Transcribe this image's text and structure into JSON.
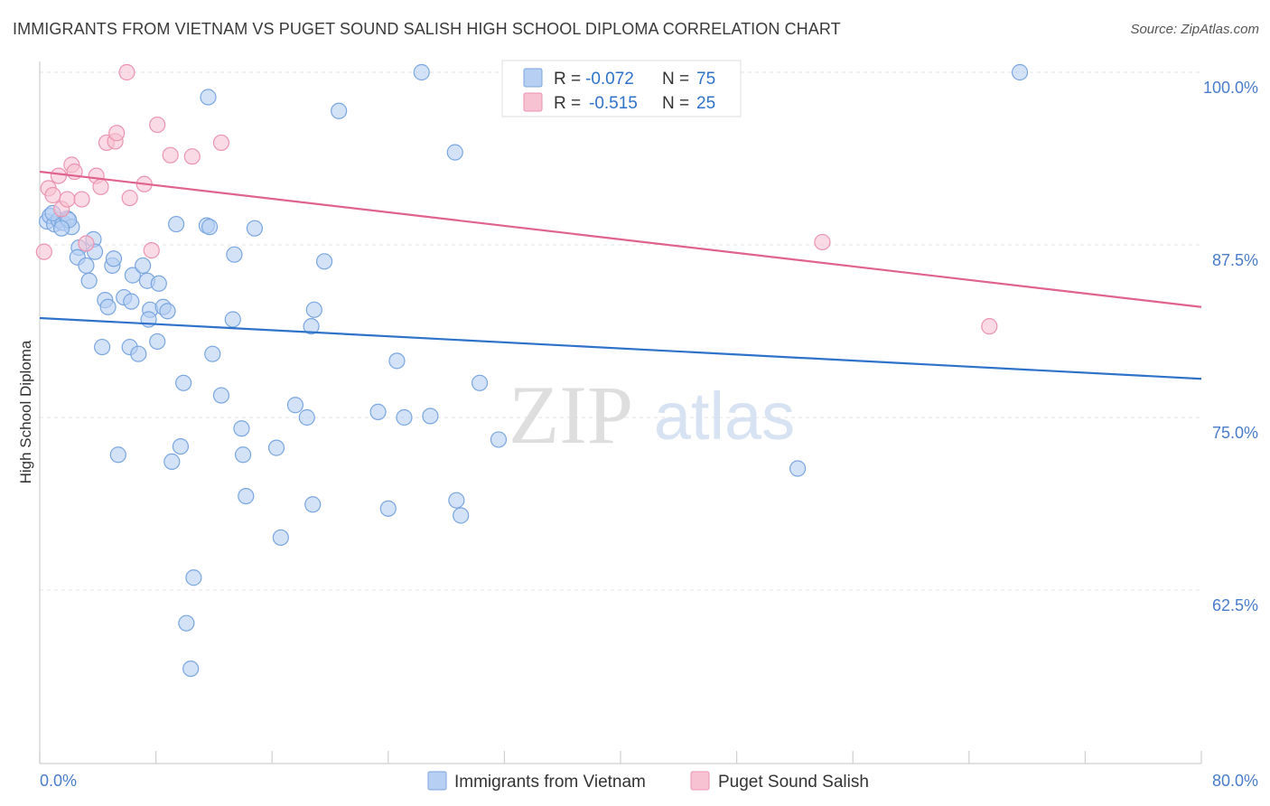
{
  "title": "IMMIGRANTS FROM VIETNAM VS PUGET SOUND SALISH HIGH SCHOOL DIPLOMA CORRELATION CHART",
  "source": "Source: ZipAtlas.com",
  "watermark": {
    "zip": "ZIP",
    "atlas": "atlas"
  },
  "colors": {
    "blue_fill": "#b6cff2",
    "blue_stroke": "#7aa6e0",
    "blue_line": "#2f72c9",
    "pink_fill": "#f7c2d2",
    "pink_stroke": "#eb94b0",
    "pink_line": "#e0628e",
    "tick_text": "#4a7cc9",
    "grid": "#e3e3e3"
  },
  "legend_top": {
    "rows": [
      {
        "r_label": "R = ",
        "r_value": "-0.072",
        "n_label": "N = ",
        "n_value": "75"
      },
      {
        "r_label": "R = ",
        "r_value": "-0.515",
        "n_label": "N = ",
        "n_value": "25"
      }
    ]
  },
  "chart_data": {
    "type": "scatter",
    "title": "IMMIGRANTS FROM VIETNAM VS PUGET SOUND SALISH HIGH SCHOOL DIPLOMA CORRELATION CHART",
    "xlabel": "",
    "ylabel": "High School Diploma",
    "xlim": [
      0,
      80
    ],
    "ylim": [
      52.5,
      101.5
    ],
    "x_tick_labels": [
      "0.0%",
      "80.0%"
    ],
    "y_ticks": [
      62.5,
      75.0,
      87.5,
      100.0
    ],
    "y_tick_labels": [
      "62.5%",
      "75.0%",
      "87.5%",
      "100.0%"
    ],
    "legend": [
      "Immigrants from Vietnam",
      "Puget Sound Salish"
    ],
    "series": [
      {
        "name": "Immigrants from Vietnam",
        "r": -0.072,
        "n": 75,
        "trend": {
          "x": [
            0,
            80
          ],
          "y": [
            82.2,
            77.8
          ]
        },
        "points": [
          [
            0.5,
            89.2
          ],
          [
            0.7,
            89.6
          ],
          [
            1.0,
            89.0
          ],
          [
            1.3,
            89.3
          ],
          [
            1.6,
            89.1
          ],
          [
            1.9,
            89.4
          ],
          [
            2.2,
            88.8
          ],
          [
            2.0,
            89.3
          ],
          [
            0.9,
            89.8
          ],
          [
            1.5,
            88.7
          ],
          [
            2.7,
            87.3
          ],
          [
            3.7,
            87.9
          ],
          [
            3.8,
            87.0
          ],
          [
            2.6,
            86.6
          ],
          [
            3.2,
            86.0
          ],
          [
            3.4,
            84.9
          ],
          [
            5.0,
            86.0
          ],
          [
            5.1,
            86.5
          ],
          [
            6.4,
            85.3
          ],
          [
            7.1,
            86.0
          ],
          [
            7.4,
            84.9
          ],
          [
            8.2,
            84.7
          ],
          [
            4.5,
            83.5
          ],
          [
            4.7,
            83.0
          ],
          [
            5.8,
            83.7
          ],
          [
            6.3,
            83.4
          ],
          [
            7.6,
            82.8
          ],
          [
            8.5,
            83.0
          ],
          [
            8.8,
            82.7
          ],
          [
            7.5,
            82.1
          ],
          [
            8.1,
            80.5
          ],
          [
            4.3,
            80.1
          ],
          [
            6.2,
            80.1
          ],
          [
            6.8,
            79.6
          ],
          [
            11.5,
            88.9
          ],
          [
            11.7,
            88.8
          ],
          [
            9.4,
            89.0
          ],
          [
            14.8,
            88.7
          ],
          [
            13.4,
            86.8
          ],
          [
            13.3,
            82.1
          ],
          [
            11.9,
            79.6
          ],
          [
            9.9,
            77.5
          ],
          [
            12.5,
            76.6
          ],
          [
            13.9,
            74.2
          ],
          [
            5.4,
            72.3
          ],
          [
            9.7,
            72.9
          ],
          [
            9.1,
            71.8
          ],
          [
            14.0,
            72.3
          ],
          [
            16.3,
            72.8
          ],
          [
            14.2,
            69.3
          ],
          [
            16.6,
            66.3
          ],
          [
            10.6,
            63.4
          ],
          [
            10.1,
            60.1
          ],
          [
            10.4,
            56.8
          ],
          [
            11.6,
            98.2
          ],
          [
            20.6,
            97.2
          ],
          [
            26.3,
            100.0
          ],
          [
            28.6,
            94.2
          ],
          [
            19.6,
            86.3
          ],
          [
            18.9,
            82.8
          ],
          [
            18.7,
            81.6
          ],
          [
            17.6,
            75.9
          ],
          [
            18.4,
            75.0
          ],
          [
            24.6,
            79.1
          ],
          [
            23.3,
            75.4
          ],
          [
            25.1,
            75.0
          ],
          [
            26.9,
            75.1
          ],
          [
            30.3,
            77.5
          ],
          [
            31.6,
            73.4
          ],
          [
            28.7,
            69.0
          ],
          [
            29.0,
            67.9
          ],
          [
            18.8,
            68.7
          ],
          [
            24.0,
            68.4
          ],
          [
            52.2,
            71.3
          ],
          [
            67.5,
            100.0
          ]
        ]
      },
      {
        "name": "Puget Sound Salish",
        "r": -0.515,
        "n": 25,
        "trend": {
          "x": [
            0,
            80
          ],
          "y": [
            92.8,
            83.0
          ]
        },
        "points": [
          [
            0.3,
            87.0
          ],
          [
            0.6,
            91.6
          ],
          [
            0.9,
            91.1
          ],
          [
            1.3,
            92.5
          ],
          [
            1.5,
            90.1
          ],
          [
            1.9,
            90.8
          ],
          [
            2.2,
            93.3
          ],
          [
            2.4,
            92.8
          ],
          [
            2.9,
            90.8
          ],
          [
            3.2,
            87.6
          ],
          [
            3.9,
            92.5
          ],
          [
            4.2,
            91.7
          ],
          [
            4.6,
            94.9
          ],
          [
            5.2,
            95.0
          ],
          [
            5.3,
            95.6
          ],
          [
            6.2,
            90.9
          ],
          [
            7.2,
            91.9
          ],
          [
            7.7,
            87.1
          ],
          [
            8.1,
            96.2
          ],
          [
            9.0,
            94.0
          ],
          [
            10.5,
            93.9
          ],
          [
            12.5,
            94.9
          ],
          [
            6.0,
            100.0
          ],
          [
            53.9,
            87.7
          ],
          [
            65.4,
            81.6
          ]
        ]
      }
    ]
  }
}
